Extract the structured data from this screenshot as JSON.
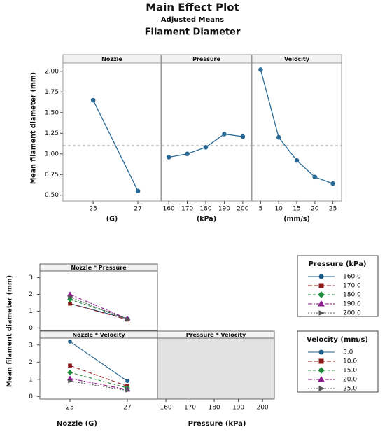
{
  "title": "Main Effect Plot",
  "subtitle": "Adjusted Means",
  "chart_data": [
    {
      "type": "main_effects",
      "title": "Filament Diameter",
      "ylabel": "Mean filament diameter (mm)",
      "ylim": [
        0.43,
        2.1
      ],
      "yticks": [
        {
          "value": 0.5,
          "label": "0.50"
        },
        {
          "value": 0.75,
          "label": "0.75"
        },
        {
          "value": 1,
          "label": "1.00"
        },
        {
          "value": 1.25,
          "label": "1.25"
        },
        {
          "value": 1.5,
          "label": "1.50"
        },
        {
          "value": 1.75,
          "label": "1.75"
        },
        {
          "value": 2,
          "label": "2.00"
        }
      ],
      "mean_line": 1.1,
      "color": "#2b6a96",
      "panels": [
        {
          "title": "Nozzle",
          "xlabel": "(G)",
          "x": [
            25,
            27
          ],
          "values": [
            1.65,
            0.55
          ],
          "xlim": [
            23.65,
            28.03
          ],
          "xticks": [
            25,
            27
          ]
        },
        {
          "title": "Pressure",
          "xlabel": "(kPa)",
          "x": [
            160,
            170,
            180,
            190,
            200
          ],
          "values": [
            0.96,
            1.0,
            1.08,
            1.24,
            1.21
          ],
          "xlim": [
            156.15,
            204.6
          ],
          "xticks": [
            160,
            170,
            180,
            190,
            200
          ]
        },
        {
          "title": "Velocity",
          "xlabel": "(mm/s)",
          "x": [
            5,
            10,
            15,
            20,
            25
          ],
          "values": [
            2.02,
            1.2,
            0.92,
            0.72,
            0.64
          ],
          "xlim": [
            2.6,
            27.4
          ],
          "xticks": [
            5,
            10,
            15,
            20,
            25
          ]
        }
      ]
    },
    {
      "type": "interaction",
      "ylabel": "Mean filament diameter (mm)",
      "ylim": [
        -0.15,
        3.4
      ],
      "yticks": [
        0,
        1,
        2,
        3
      ],
      "factors": [
        {
          "name": "Nozzle (G)",
          "xlim": [
            23.95,
            28.05
          ],
          "xticks": [
            25,
            27
          ]
        },
        {
          "name": "Pressure (kPa)",
          "xlim": [
            156.5,
            204.9
          ],
          "xticks": [
            160,
            170,
            180,
            190,
            200
          ]
        }
      ],
      "panels": [
        {
          "title": "Nozzle * Pressure",
          "x": [
            25,
            27
          ],
          "legend_title": "Pressure (kPa)",
          "series": [
            {
              "name": "160.0",
              "color": "#1f5f8b",
              "marker": "circle",
              "dash": "none",
              "values": [
                1.45,
                0.55
              ]
            },
            {
              "name": "170.0",
              "color": "#8b1a1a",
              "marker": "square",
              "dash": "6 3",
              "values": [
                1.45,
                0.5
              ]
            },
            {
              "name": "180.0",
              "color": "#1e8b3c",
              "marker": "diamond",
              "dash": "4 3",
              "values": [
                1.7,
                0.55
              ]
            },
            {
              "name": "190.0",
              "color": "#8b1a8b",
              "marker": "triangle",
              "dash": "6 2 2 2",
              "values": [
                2.0,
                0.55
              ]
            },
            {
              "name": "200.0",
              "color": "#555555",
              "marker": "arrow",
              "dash": "2 2",
              "values": [
                1.85,
                0.5
              ]
            }
          ]
        },
        {
          "title": "Nozzle * Velocity",
          "x": [
            25,
            27
          ],
          "legend_title": "Velocity (mm/s)",
          "series": [
            {
              "name": "5.0",
              "color": "#1f5f8b",
              "marker": "circle",
              "dash": "none",
              "values": [
                3.2,
                0.9
              ]
            },
            {
              "name": "10.0",
              "color": "#8b1a1a",
              "marker": "square",
              "dash": "6 3",
              "values": [
                1.8,
                0.6
              ]
            },
            {
              "name": "15.0",
              "color": "#1e8b3c",
              "marker": "diamond",
              "dash": "4 3",
              "values": [
                1.4,
                0.5
              ]
            },
            {
              "name": "20.0",
              "color": "#8b1a8b",
              "marker": "triangle",
              "dash": "6 2 2 2",
              "values": [
                1.05,
                0.4
              ]
            },
            {
              "name": "25.0",
              "color": "#555555",
              "marker": "arrow",
              "dash": "2 2",
              "values": [
                0.9,
                0.35
              ]
            }
          ]
        },
        {
          "title": "Pressure * Velocity"
        }
      ]
    }
  ]
}
